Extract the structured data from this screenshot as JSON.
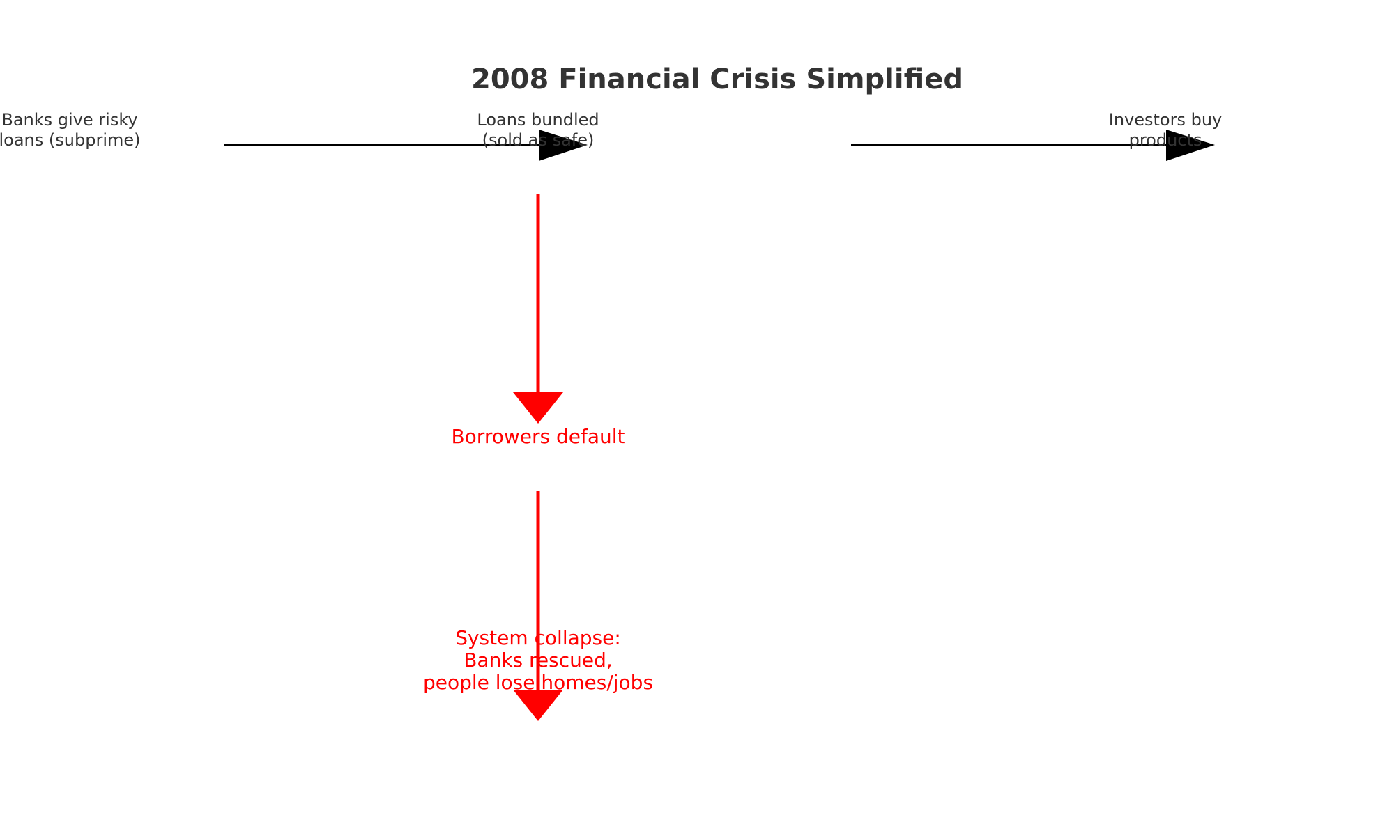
{
  "diagram": {
    "title": "2008 Financial Crisis Simplified",
    "colors": {
      "text": "#333333",
      "flow_arrow": "#000000",
      "consequence": "#ff0000"
    },
    "nodes": [
      {
        "id": "banks",
        "label": "Banks give risky\nloans (subprime)"
      },
      {
        "id": "bundled",
        "label": "Loans bundled\n(sold as safe)"
      },
      {
        "id": "investors",
        "label": "Investors buy\nproducts"
      },
      {
        "id": "default",
        "label": "Borrowers default"
      },
      {
        "id": "collapse",
        "label": "System collapse:\nBanks rescued,\npeople lose homes/jobs"
      }
    ],
    "edges": [
      {
        "from": "banks",
        "to": "bundled",
        "color": "#000000"
      },
      {
        "from": "bundled",
        "to": "investors",
        "color": "#000000"
      },
      {
        "from": "bundled",
        "to": "default",
        "color": "#ff0000"
      },
      {
        "from": "default",
        "to": "collapse",
        "color": "#ff0000"
      }
    ]
  }
}
